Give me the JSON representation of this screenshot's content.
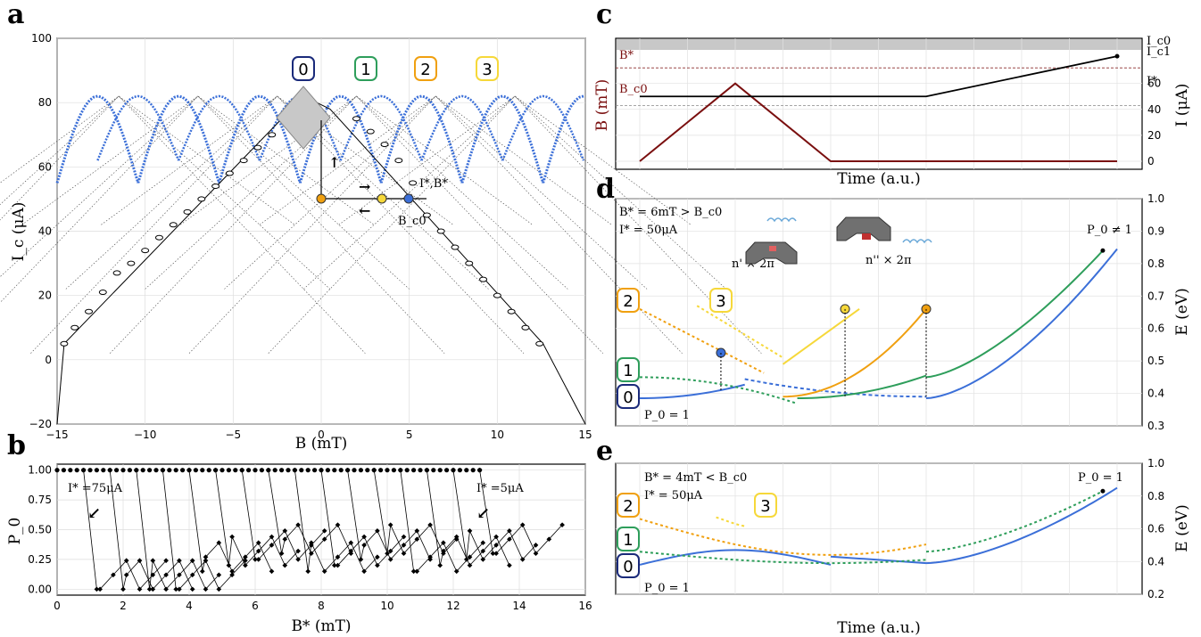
{
  "panel_labels": {
    "a": "a",
    "b": "b",
    "c": "c",
    "d": "d",
    "e": "e"
  },
  "colors": {
    "blue": "#3b6fd8",
    "green": "#2e9e5b",
    "orange": "#f0a010",
    "yellow": "#f6d83a",
    "darkred": "#7a0f0f",
    "navy": "#1a2a7a",
    "gray": "#c8c8c8"
  },
  "chart_data": [
    {
      "panel": "a",
      "type": "scatter",
      "xlabel": "B (mT)",
      "ylabel": "I_c (μA)",
      "xlim": [
        -15,
        15
      ],
      "ylim": [
        -20,
        100
      ],
      "xticks": [
        "−15",
        "−10",
        "−5",
        "0",
        "5",
        "10",
        "15"
      ],
      "yticks": [
        "−20",
        "0",
        "20",
        "40",
        "60",
        "80",
        "100"
      ],
      "state_labels": [
        "0",
        "1",
        "2",
        "3"
      ],
      "annotations": {
        "istar": "I*,B*",
        "bc0": "B_c0"
      },
      "open_markers": {
        "x": [
          -14.6,
          -14,
          -13.2,
          -12.4,
          -11.6,
          -10.8,
          -10,
          -9.2,
          -8.4,
          -7.6,
          -6.8,
          -6,
          -5.2,
          -4.4,
          -3.6,
          -2.8,
          -2,
          2,
          2.8,
          3.6,
          4.4,
          5.2,
          6,
          6.8,
          7.6,
          8.4,
          9.2,
          10,
          10.8,
          11.6,
          12.4
        ],
        "y": [
          5,
          10,
          15,
          21,
          27,
          30,
          34,
          38,
          42,
          46,
          50,
          54,
          58,
          62,
          66,
          70,
          75,
          75,
          71,
          67,
          62,
          55,
          45,
          40,
          35,
          30,
          25,
          20,
          15,
          10,
          5
        ]
      },
      "series": [
        {
          "name": "",
          "values": []
        }
      ]
    },
    {
      "panel": "b",
      "type": "line",
      "xlabel": "B* (mT)",
      "ylabel": "P_0",
      "xlim": [
        0,
        16
      ],
      "ylim": [
        0,
        1.05
      ],
      "xticks": [
        "0",
        "2",
        "4",
        "6",
        "8",
        "10",
        "12",
        "14",
        "16"
      ],
      "yticks": [
        "0.00",
        "0.25",
        "0.50",
        "0.75",
        "1.00"
      ],
      "annotations": {
        "left": "I* =75μA",
        "right": "I* =5μA"
      },
      "switch_points": [
        0.8,
        1.6,
        2.4,
        3.2,
        4.0,
        4.8,
        5.6,
        6.4,
        7.2,
        8.0,
        8.8,
        9.6,
        10.4,
        11.2,
        12.0,
        12.8
      ]
    },
    {
      "panel": "c",
      "type": "line",
      "xlabel": "Time (a.u.)",
      "ylabel_left": "B (mT)",
      "ylabel_right": "I (μA)",
      "yticks_right": [
        "0",
        "20",
        "40",
        "60"
      ],
      "right_labels": {
        "ic0": "I_c0",
        "ic1": "I_c1",
        "istar": "I*"
      },
      "left_labels": {
        "bstar": "B*",
        "bc0": "B_c0"
      },
      "B_series": {
        "time": [
          0,
          2,
          4,
          6,
          8,
          10
        ],
        "values": [
          0,
          6,
          0,
          0,
          0,
          0
        ]
      },
      "I_series": {
        "time": [
          0,
          2,
          4,
          6,
          8,
          10
        ],
        "values": [
          50,
          50,
          50,
          50,
          60,
          80
        ]
      }
    },
    {
      "panel": "d",
      "type": "line",
      "xlabel": "",
      "ylabel": "E (eV)",
      "ylim": [
        0.3,
        1.0
      ],
      "yticks": [
        "0.3",
        "0.4",
        "0.5",
        "0.6",
        "0.7",
        "0.8",
        "0.9",
        "1.0"
      ],
      "params": [
        "B* = 6mT > B_c0",
        "I* = 50μA"
      ],
      "p0_label": "P_0 = 1",
      "p0_end": "P_0 ≠ 1",
      "twist_labels": [
        "n' × 2π",
        "n'' × 2π"
      ],
      "state_labels": [
        "2",
        "3",
        "1",
        "0"
      ]
    },
    {
      "panel": "e",
      "type": "line",
      "xlabel": "Time (a.u.)",
      "ylabel": "E (eV)",
      "ylim": [
        0.2,
        1.0
      ],
      "yticks": [
        "0.2",
        "0.4",
        "0.6",
        "0.8",
        "1.0"
      ],
      "params": [
        "B* = 4mT < B_c0",
        "I* = 50μA"
      ],
      "p0_label": "P_0 = 1",
      "p0_end": "P_0 = 1",
      "state_labels": [
        "2",
        "3",
        "1",
        "0"
      ]
    }
  ],
  "text": {
    "a_xlabel": "B (mT)",
    "a_ylabel": "I_c (μA)",
    "b_xlabel": "B* (mT)",
    "b_ylabel": "P_0",
    "c_xlabel": "Time (a.u.)",
    "c_ylabel_left": "B (mT)",
    "c_ylabel_right": "I (μA)",
    "d_ylabel": "E (eV)",
    "e_ylabel": "E (eV)",
    "e_xlabel": "Time (a.u.)"
  }
}
